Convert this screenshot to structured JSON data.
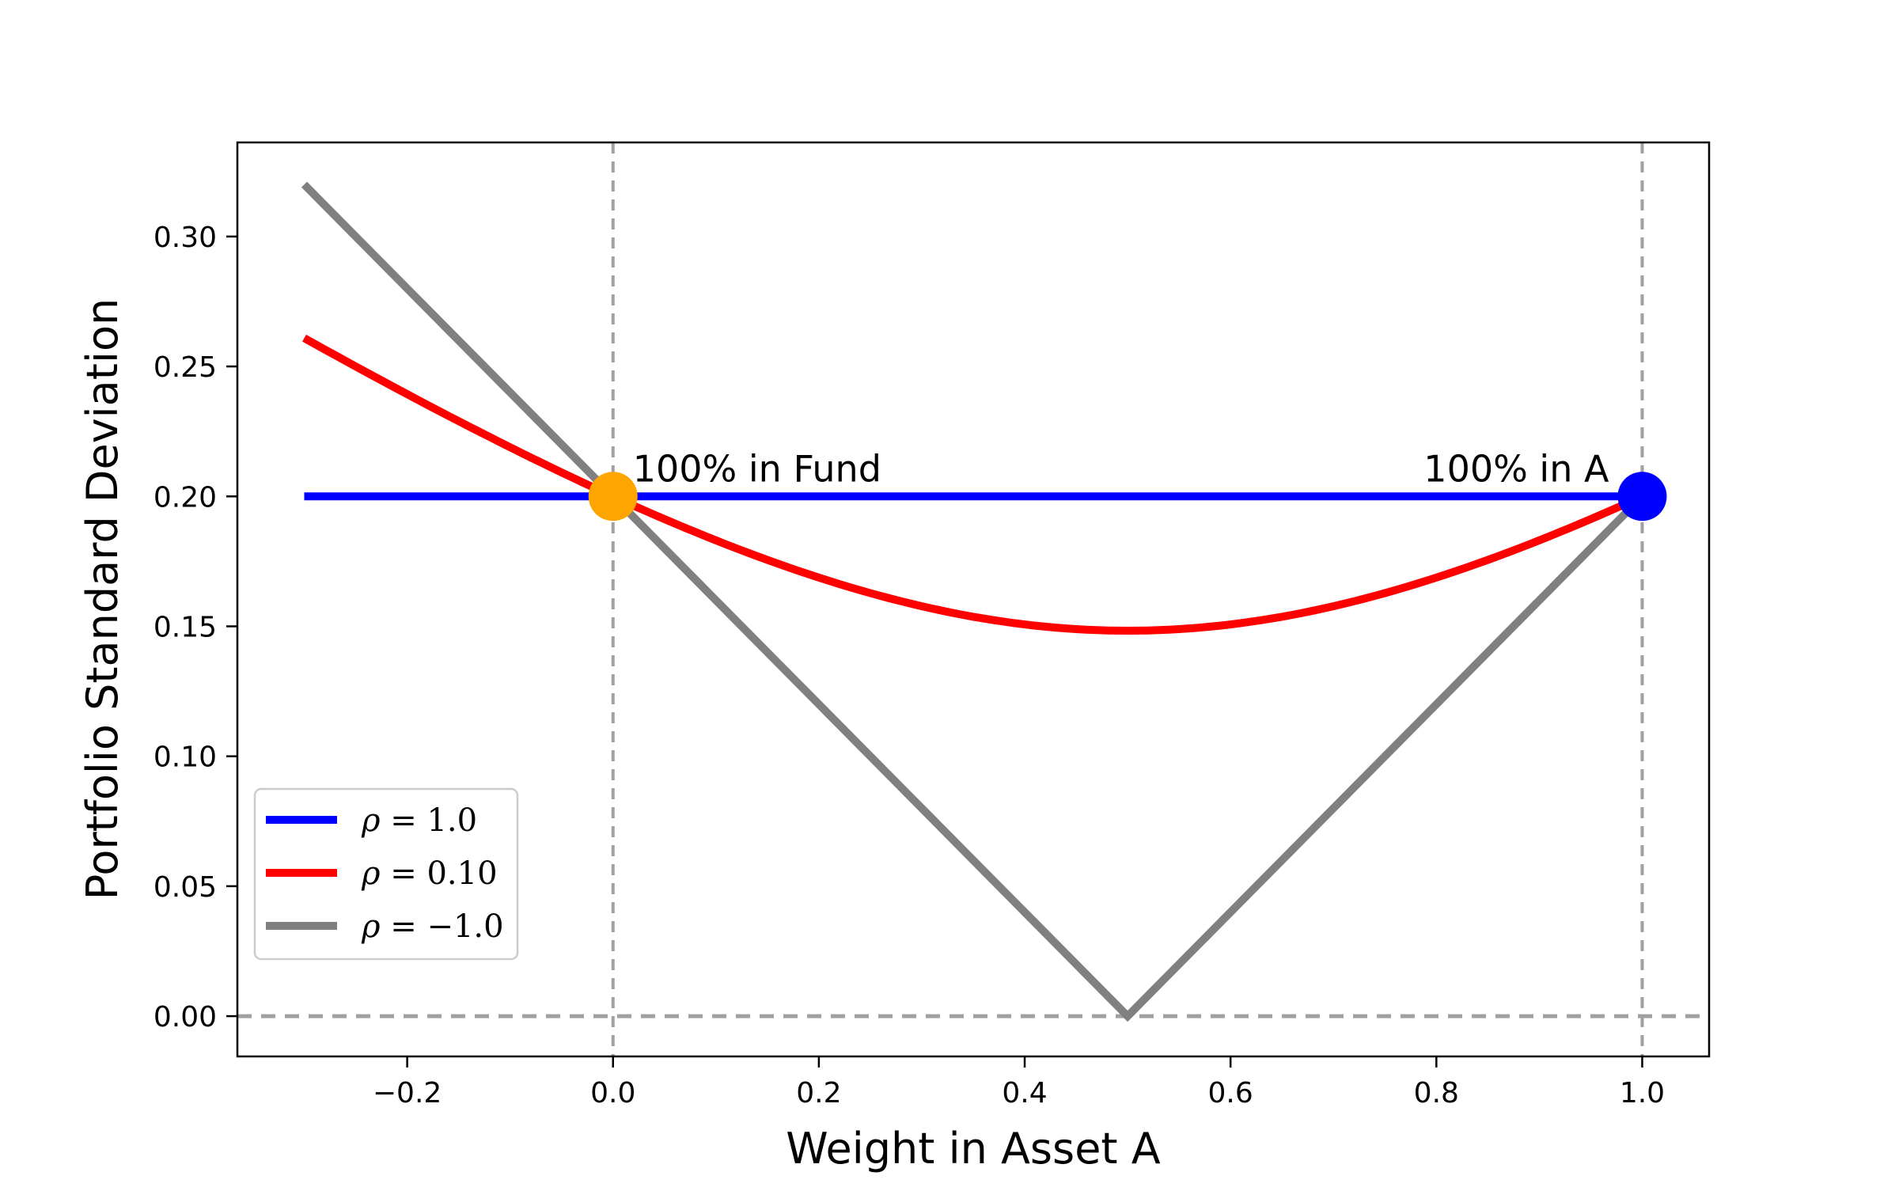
{
  "chart_data": {
    "type": "line",
    "title": "",
    "xlabel": "Weight in Asset A",
    "ylabel": "Portfolio Standard Deviation",
    "xlim": [
      -0.365,
      1.065
    ],
    "ylim": [
      -0.0155,
      0.3362
    ],
    "xticks": [
      -0.2,
      0.0,
      0.2,
      0.4,
      0.6,
      0.8,
      1.0
    ],
    "xtick_labels": [
      "−0.2",
      "0.0",
      "0.2",
      "0.4",
      "0.6",
      "0.8",
      "1.0"
    ],
    "yticks": [
      0.0,
      0.05,
      0.1,
      0.15,
      0.2,
      0.25,
      0.3
    ],
    "ytick_labels": [
      "0.00",
      "0.05",
      "0.10",
      "0.15",
      "0.20",
      "0.25",
      "0.30"
    ],
    "grid": false,
    "legend_position": "lower-left",
    "x": [
      -0.3,
      -0.2,
      -0.1,
      0.0,
      0.1,
      0.2,
      0.3,
      0.4,
      0.5,
      0.6,
      0.7,
      0.8,
      0.9,
      1.0
    ],
    "series": [
      {
        "name": "ρ = 1.0",
        "legend_rho": "ρ",
        "legend_rest": " = 1.0",
        "color": "#0000ff",
        "values": [
          0.2,
          0.2,
          0.2,
          0.2,
          0.2,
          0.2,
          0.2,
          0.2,
          0.2,
          0.2,
          0.2,
          0.2,
          0.2,
          0.2
        ]
      },
      {
        "name": "ρ = 0.10",
        "legend_rho": "ρ",
        "legend_rest": " = 0.10",
        "color": "#ff0000",
        "values": [
          0.2616,
          0.2397,
          0.2189,
          0.2,
          0.1833,
          0.1694,
          0.1589,
          0.1523,
          0.1483,
          0.1523,
          0.1589,
          0.1694,
          0.1833,
          0.2
        ]
      },
      {
        "name": "ρ = −1.0",
        "legend_rho": "ρ",
        "legend_rest": " = −1.0",
        "color": "#808080",
        "values": [
          0.32,
          0.28,
          0.24,
          0.2,
          0.16,
          0.12,
          0.08,
          0.04,
          0.0,
          0.04,
          0.08,
          0.12,
          0.16,
          0.2
        ]
      }
    ],
    "reference_lines": {
      "vertical_x": [
        0.0,
        1.0
      ],
      "horizontal_y": [
        0.0
      ],
      "color": "#a0a0a0"
    },
    "markers": [
      {
        "x": 0.0,
        "y": 0.2,
        "color": "#ffa500"
      },
      {
        "x": 1.0,
        "y": 0.2,
        "color": "#0000ff"
      }
    ],
    "annotations": [
      {
        "text": "100% in Fund",
        "x": 0.0,
        "y": 0.2,
        "anchor": "start"
      },
      {
        "text": "100% in A",
        "x": 1.0,
        "y": 0.2,
        "anchor": "end"
      }
    ]
  }
}
